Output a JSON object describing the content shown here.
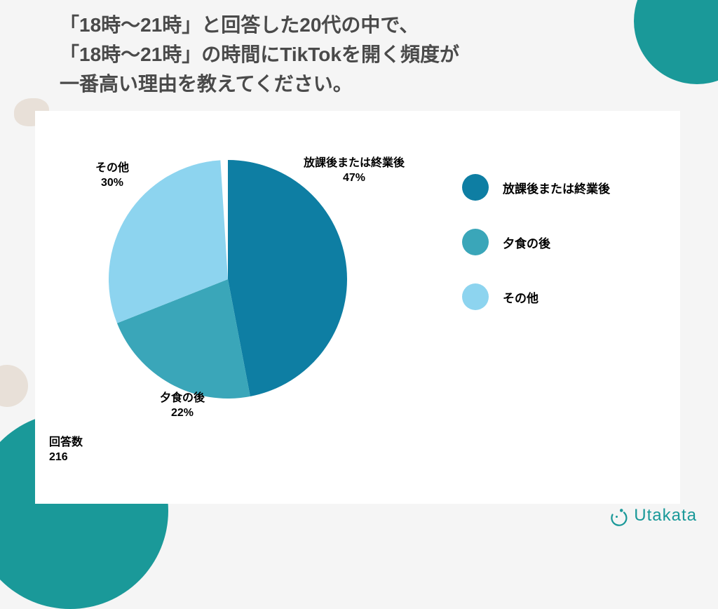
{
  "title": {
    "line1": "「18時〜21時」と回答した20代の中で、",
    "line2": "「18時〜21時」の時間にTikTokを開く頻度が",
    "line3": "  一番高い理由を教えてください。"
  },
  "chart": {
    "type": "pie",
    "background_color": "#ffffff",
    "slices": [
      {
        "label": "放課後または終業後",
        "percent": 47,
        "display": "放課後または終業後\n47%",
        "color": "#0e7ea3"
      },
      {
        "label": "夕食の後",
        "percent": 22,
        "display": "夕食の後\n22%",
        "color": "#3aa6b9"
      },
      {
        "label": "その他",
        "percent": 30,
        "display": "その他\n30%",
        "color": "#8dd4ef"
      }
    ],
    "response_count_label": "回答数",
    "response_count_value": "216"
  },
  "legend": {
    "items": [
      {
        "label": "放課後または終業後",
        "color": "#0e7ea3"
      },
      {
        "label": "夕食の後",
        "color": "#3aa6b9"
      },
      {
        "label": "その他",
        "color": "#8dd4ef"
      }
    ]
  },
  "logo": {
    "text": "Utakata",
    "color": "#1a9999"
  },
  "decorations": {
    "accent_color": "#1a9999",
    "blob_color": "#e8e0d8",
    "page_bg": "#f5f5f5"
  }
}
